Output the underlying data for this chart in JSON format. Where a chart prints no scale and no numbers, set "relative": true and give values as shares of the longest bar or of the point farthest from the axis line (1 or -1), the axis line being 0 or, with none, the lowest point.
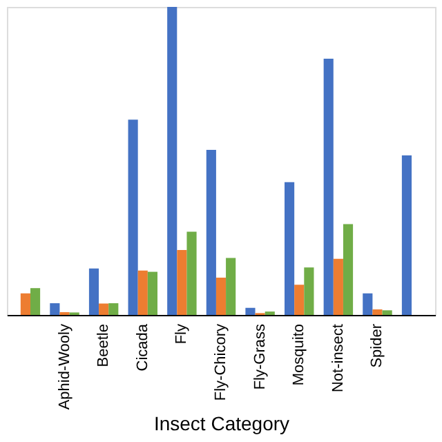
{
  "chart_data": {
    "type": "bar",
    "relative": true,
    "xlabel": "Insect Category",
    "categories": [
      null,
      "Aphid-Wooly",
      "Beetle",
      "Cicada",
      "Fly",
      "Fly-Chicory",
      "Fly-Grass",
      "Mosquito",
      "Not-insect",
      "Spider",
      null
    ],
    "series": [
      {
        "color": "#4472c4",
        "values": [
          null,
          0.038,
          0.151,
          0.634,
          1,
          0.536,
          0.023,
          0.431,
          0.832,
          0.07,
          0.518
        ]
      },
      {
        "color": "#ed7d31",
        "values": [
          0.07,
          0.009,
          0.037,
          0.144,
          0.211,
          0.121,
          0.006,
          0.098,
          0.182,
          0.018,
          null
        ]
      },
      {
        "color": "#70ad47",
        "values": [
          0.087,
          0.008,
          0.038,
          0.14,
          0.27,
          0.185,
          0.011,
          0.154,
          0.295,
          0.015,
          null
        ]
      }
    ],
    "legend": false,
    "grid": false
  }
}
